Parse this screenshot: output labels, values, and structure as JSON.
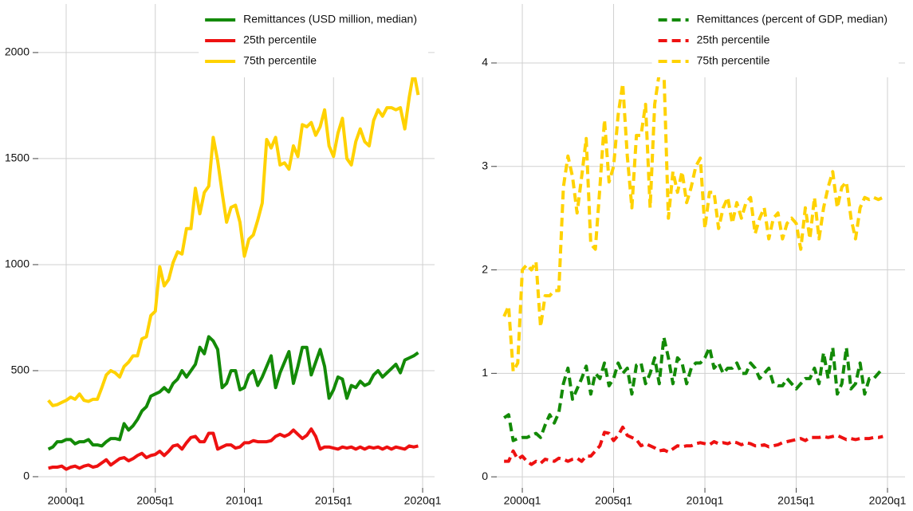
{
  "chart_data": [
    {
      "type": "line",
      "linestyle": "solid",
      "grid": true,
      "legend_loc": "upper right",
      "x": [
        "1999q1",
        "1999q2",
        "1999q3",
        "1999q4",
        "2000q1",
        "2000q2",
        "2000q3",
        "2000q4",
        "2001q1",
        "2001q2",
        "2001q3",
        "2001q4",
        "2002q1",
        "2002q2",
        "2002q3",
        "2002q4",
        "2003q1",
        "2003q2",
        "2003q3",
        "2003q4",
        "2004q1",
        "2004q2",
        "2004q3",
        "2004q4",
        "2005q1",
        "2005q2",
        "2005q3",
        "2005q4",
        "2006q1",
        "2006q2",
        "2006q3",
        "2006q4",
        "2007q1",
        "2007q2",
        "2007q3",
        "2007q4",
        "2008q1",
        "2008q2",
        "2008q3",
        "2008q4",
        "2009q1",
        "2009q2",
        "2009q3",
        "2009q4",
        "2010q1",
        "2010q2",
        "2010q3",
        "2010q4",
        "2011q1",
        "2011q2",
        "2011q3",
        "2011q4",
        "2012q1",
        "2012q2",
        "2012q3",
        "2012q4",
        "2013q1",
        "2013q2",
        "2013q3",
        "2013q4",
        "2014q1",
        "2014q2",
        "2014q3",
        "2014q4",
        "2015q1",
        "2015q2",
        "2015q3",
        "2015q4",
        "2016q1",
        "2016q2",
        "2016q3",
        "2016q4",
        "2017q1",
        "2017q2",
        "2017q3",
        "2017q4",
        "2018q1",
        "2018q2",
        "2018q3",
        "2018q4",
        "2019q1",
        "2019q2",
        "2019q3",
        "2019q4"
      ],
      "xlim": [
        1998.3,
        2020.67
      ],
      "xticks": [
        "2000q1",
        "2005q1",
        "2010q1",
        "2015q1",
        "2020q1"
      ],
      "ylim": [
        -64,
        2229
      ],
      "yticks": [
        0,
        500,
        1000,
        1500,
        2000
      ],
      "series": [
        {
          "name": "Remittances (USD million, median)",
          "color": "#138a07",
          "values": [
            130,
            140,
            165,
            165,
            175,
            175,
            155,
            165,
            165,
            175,
            150,
            150,
            145,
            165,
            180,
            180,
            175,
            250,
            220,
            240,
            270,
            310,
            330,
            380,
            390,
            400,
            420,
            400,
            440,
            460,
            500,
            470,
            500,
            530,
            610,
            580,
            660,
            640,
            600,
            420,
            440,
            500,
            500,
            410,
            420,
            480,
            500,
            430,
            470,
            520,
            570,
            420,
            490,
            540,
            590,
            440,
            520,
            610,
            610,
            480,
            540,
            600,
            520,
            370,
            410,
            470,
            460,
            370,
            430,
            420,
            450,
            430,
            440,
            480,
            500,
            470,
            490,
            510,
            530,
            490,
            550,
            560,
            570,
            585
          ]
        },
        {
          "name": "25th percentile",
          "color": "#ee1111",
          "values": [
            40,
            45,
            45,
            50,
            35,
            45,
            50,
            40,
            50,
            55,
            45,
            50,
            65,
            80,
            55,
            70,
            85,
            90,
            75,
            85,
            100,
            110,
            90,
            100,
            105,
            120,
            100,
            120,
            145,
            150,
            130,
            160,
            185,
            190,
            165,
            165,
            205,
            205,
            130,
            140,
            150,
            150,
            135,
            140,
            160,
            160,
            170,
            165,
            165,
            165,
            170,
            190,
            200,
            190,
            200,
            220,
            200,
            180,
            195,
            225,
            190,
            130,
            140,
            140,
            135,
            130,
            140,
            135,
            140,
            130,
            140,
            130,
            140,
            135,
            140,
            130,
            140,
            130,
            140,
            135,
            130,
            145,
            140,
            145
          ]
        },
        {
          "name": "75th percentile",
          "color": "#ffd200",
          "values": [
            360,
            335,
            340,
            350,
            360,
            375,
            365,
            390,
            360,
            355,
            365,
            365,
            420,
            480,
            500,
            490,
            470,
            520,
            540,
            570,
            570,
            650,
            660,
            760,
            780,
            990,
            900,
            930,
            1010,
            1060,
            1050,
            1170,
            1170,
            1360,
            1240,
            1340,
            1370,
            1600,
            1490,
            1340,
            1200,
            1270,
            1280,
            1200,
            1040,
            1120,
            1140,
            1210,
            1290,
            1590,
            1550,
            1600,
            1470,
            1480,
            1450,
            1560,
            1510,
            1660,
            1650,
            1670,
            1610,
            1650,
            1730,
            1560,
            1510,
            1620,
            1690,
            1500,
            1470,
            1580,
            1640,
            1580,
            1560,
            1680,
            1730,
            1700,
            1740,
            1740,
            1730,
            1740,
            1640,
            1790,
            1910,
            1800
          ]
        }
      ]
    },
    {
      "type": "line",
      "linestyle": "dashed",
      "grid": true,
      "legend_loc": "upper right",
      "x": [
        "1999q1",
        "1999q2",
        "1999q3",
        "1999q4",
        "2000q1",
        "2000q2",
        "2000q3",
        "2000q4",
        "2001q1",
        "2001q2",
        "2001q3",
        "2001q4",
        "2002q1",
        "2002q2",
        "2002q3",
        "2002q4",
        "2003q1",
        "2003q2",
        "2003q3",
        "2003q4",
        "2004q1",
        "2004q2",
        "2004q3",
        "2004q4",
        "2005q1",
        "2005q2",
        "2005q3",
        "2005q4",
        "2006q1",
        "2006q2",
        "2006q3",
        "2006q4",
        "2007q1",
        "2007q2",
        "2007q3",
        "2007q4",
        "2008q1",
        "2008q2",
        "2008q3",
        "2008q4",
        "2009q1",
        "2009q2",
        "2009q3",
        "2009q4",
        "2010q1",
        "2010q2",
        "2010q3",
        "2010q4",
        "2011q1",
        "2011q2",
        "2011q3",
        "2011q4",
        "2012q1",
        "2012q2",
        "2012q3",
        "2012q4",
        "2013q1",
        "2013q2",
        "2013q3",
        "2013q4",
        "2014q1",
        "2014q2",
        "2014q3",
        "2014q4",
        "2015q1",
        "2015q2",
        "2015q3",
        "2015q4",
        "2016q1",
        "2016q2",
        "2016q3",
        "2016q4",
        "2017q1",
        "2017q2",
        "2017q3",
        "2017q4",
        "2018q1",
        "2018q2",
        "2018q3",
        "2018q4",
        "2019q1",
        "2019q2",
        "2019q3",
        "2019q4"
      ],
      "xlim": [
        1998.47,
        2020.96
      ],
      "xticks": [
        "2000q1",
        "2005q1",
        "2010q1",
        "2015q1",
        "2020q1"
      ],
      "ylim": [
        -0.13,
        4.57
      ],
      "yticks": [
        0,
        1,
        2,
        3,
        4
      ],
      "series": [
        {
          "name": "Remittances (percent of GDP, median)",
          "color": "#138a07",
          "values": [
            0.57,
            0.6,
            0.35,
            0.37,
            0.38,
            0.38,
            0.4,
            0.42,
            0.38,
            0.5,
            0.6,
            0.52,
            0.62,
            0.9,
            1.05,
            0.75,
            0.85,
            0.95,
            1.07,
            0.8,
            1.0,
            0.95,
            1.1,
            0.88,
            0.95,
            1.1,
            1.0,
            1.05,
            0.8,
            1.08,
            1.1,
            0.9,
            1.0,
            1.15,
            0.9,
            1.35,
            1.15,
            0.9,
            1.15,
            1.1,
            0.9,
            1.05,
            1.1,
            1.1,
            1.15,
            1.25,
            1.05,
            1.1,
            1.0,
            1.05,
            1.05,
            1.1,
            1.0,
            1.0,
            1.1,
            1.05,
            0.95,
            1.0,
            1.05,
            0.9,
            0.88,
            0.88,
            0.95,
            0.9,
            0.85,
            0.9,
            0.95,
            0.95,
            1.05,
            0.9,
            1.2,
            0.95,
            1.25,
            0.8,
            0.9,
            1.25,
            0.85,
            0.9,
            1.1,
            0.8,
            0.95,
            0.95,
            1.0,
            1.05
          ]
        },
        {
          "name": "25th percentile",
          "color": "#ee1111",
          "values": [
            0.15,
            0.15,
            0.25,
            0.17,
            0.2,
            0.15,
            0.12,
            0.15,
            0.13,
            0.17,
            0.16,
            0.15,
            0.18,
            0.17,
            0.15,
            0.17,
            0.18,
            0.15,
            0.2,
            0.2,
            0.25,
            0.3,
            0.43,
            0.42,
            0.35,
            0.4,
            0.48,
            0.4,
            0.38,
            0.36,
            0.3,
            0.32,
            0.3,
            0.28,
            0.25,
            0.26,
            0.24,
            0.27,
            0.3,
            0.29,
            0.3,
            0.3,
            0.32,
            0.33,
            0.32,
            0.31,
            0.34,
            0.32,
            0.33,
            0.32,
            0.34,
            0.33,
            0.31,
            0.33,
            0.32,
            0.3,
            0.3,
            0.31,
            0.29,
            0.3,
            0.31,
            0.33,
            0.34,
            0.35,
            0.36,
            0.37,
            0.35,
            0.38,
            0.38,
            0.38,
            0.39,
            0.38,
            0.39,
            0.4,
            0.38,
            0.36,
            0.37,
            0.36,
            0.37,
            0.37,
            0.37,
            0.38,
            0.38,
            0.39
          ]
        },
        {
          "name": "75th percentile",
          "color": "#ffd200",
          "values": [
            1.55,
            1.65,
            1.02,
            1.1,
            2.0,
            2.05,
            2.0,
            2.08,
            1.45,
            1.75,
            1.75,
            1.8,
            1.8,
            2.8,
            3.1,
            2.9,
            2.55,
            2.9,
            3.27,
            2.25,
            2.2,
            2.8,
            3.45,
            2.85,
            3.0,
            3.5,
            3.8,
            3.1,
            2.6,
            3.3,
            3.3,
            3.6,
            2.6,
            3.6,
            3.9,
            3.95,
            2.5,
            2.95,
            2.75,
            2.95,
            2.65,
            2.8,
            3.0,
            3.08,
            2.4,
            2.75,
            2.75,
            2.4,
            2.6,
            2.7,
            2.45,
            2.65,
            2.5,
            2.65,
            2.7,
            2.35,
            2.5,
            2.6,
            2.3,
            2.5,
            2.55,
            2.3,
            2.45,
            2.5,
            2.45,
            2.2,
            2.6,
            2.3,
            2.7,
            2.3,
            2.6,
            2.8,
            2.95,
            2.6,
            2.8,
            2.85,
            2.5,
            2.3,
            2.6,
            2.7,
            2.68,
            2.7,
            2.68,
            2.7
          ]
        }
      ]
    }
  ]
}
